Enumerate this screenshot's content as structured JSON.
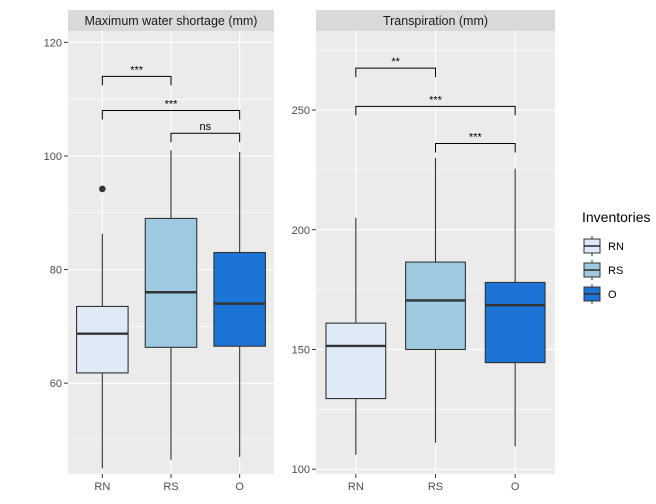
{
  "chart_data": [
    {
      "type": "boxplot",
      "title": "Maximum water shortage (mm)",
      "categories": [
        "RN",
        "RS",
        "O"
      ],
      "ylim": [
        44,
        122
      ],
      "yticks": [
        60,
        80,
        100,
        120
      ],
      "grid": true,
      "boxes": [
        {
          "category": "RN",
          "min": 45,
          "q1": 61.8,
          "median": 68.7,
          "q3": 73.5,
          "max": 86.3,
          "outliers": [
            94.2
          ],
          "fill": "#deebf7"
        },
        {
          "category": "RS",
          "min": 46.5,
          "q1": 66.3,
          "median": 76,
          "q3": 89,
          "max": 101,
          "outliers": [],
          "fill": "#9ecae1"
        },
        {
          "category": "O",
          "min": 47,
          "q1": 66.5,
          "median": 74,
          "q3": 83,
          "max": 100.7,
          "outliers": [],
          "fill": "#1c75d6"
        }
      ],
      "significance": [
        {
          "from": "RN",
          "to": "RS",
          "y": 114,
          "label": "***"
        },
        {
          "from": "RN",
          "to": "O",
          "y": 108,
          "label": "***"
        },
        {
          "from": "RS",
          "to": "O",
          "y": 104,
          "label": "ns"
        }
      ]
    },
    {
      "type": "boxplot",
      "title": "Transpiration (mm)",
      "categories": [
        "RN",
        "RS",
        "O"
      ],
      "ylim": [
        98,
        283
      ],
      "yticks": [
        100,
        150,
        200,
        250
      ],
      "grid": true,
      "boxes": [
        {
          "category": "RN",
          "min": 106,
          "q1": 129.5,
          "median": 151.5,
          "q3": 161,
          "max": 205,
          "outliers": [],
          "fill": "#deebf7"
        },
        {
          "category": "RS",
          "min": 111,
          "q1": 150,
          "median": 170.5,
          "q3": 186.5,
          "max": 230,
          "outliers": [],
          "fill": "#9ecae1"
        },
        {
          "category": "O",
          "min": 109.5,
          "q1": 144.5,
          "median": 168.5,
          "q3": 178,
          "max": 225.5,
          "outliers": [],
          "fill": "#1c75d6"
        }
      ],
      "significance": [
        {
          "from": "RN",
          "to": "RS",
          "y": 267.5,
          "label": "**"
        },
        {
          "from": "RN",
          "to": "O",
          "y": 251.5,
          "label": "***"
        },
        {
          "from": "RS",
          "to": "O",
          "y": 236,
          "label": "***"
        }
      ]
    }
  ],
  "legend": {
    "title": "Inventories",
    "placement": "right",
    "items": [
      {
        "label": "RN",
        "color": "#deebf7"
      },
      {
        "label": "RS",
        "color": "#9ecae1"
      },
      {
        "label": "O",
        "color": "#1c75d6"
      }
    ]
  }
}
